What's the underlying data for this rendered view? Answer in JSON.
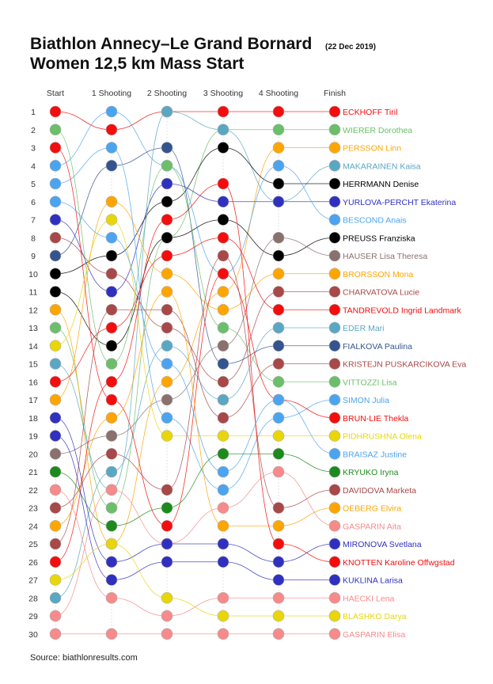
{
  "title": "Biathlon Annecy–Le Grand Bornard",
  "date": "(22 Dec 2019)",
  "subtitle": "Women 12,5 km Mass Start",
  "source": "Source: biathlonresults.com",
  "chart_data": {
    "type": "bump",
    "stages": [
      "Start",
      "1 Shooting",
      "2 Shooting",
      "3 Shooting",
      "4 Shooting",
      "Finish"
    ],
    "ranks": [
      1,
      2,
      3,
      4,
      5,
      6,
      7,
      8,
      9,
      10,
      11,
      12,
      13,
      14,
      15,
      16,
      17,
      18,
      19,
      20,
      21,
      22,
      23,
      24,
      25,
      26,
      27,
      28,
      29,
      30
    ],
    "athletes": [
      {
        "name": "ECKHOFF Tiril",
        "color": "#f40d0d",
        "positions": [
          1,
          2,
          1,
          1,
          1,
          1
        ]
      },
      {
        "name": "WIERER Dorothea",
        "color": "#6bbf6b",
        "positions": [
          13,
          23,
          8,
          2,
          2,
          2
        ]
      },
      {
        "name": "PERSSON Linn",
        "color": "#ffa500",
        "positions": [
          12,
          25,
          16,
          11,
          3,
          3
        ]
      },
      {
        "name": "MAKARAINEN Kaisa",
        "color": "#5aa7c4",
        "positions": [
          15,
          22,
          1,
          2,
          6,
          4
        ]
      },
      {
        "name": "HERRMANN Denise",
        "color": "#000000",
        "positions": [
          10,
          9,
          6,
          3,
          5,
          5
        ]
      },
      {
        "name": "YURLOVA-PERCHT Ekaterina",
        "color": "#3030c0",
        "positions": [
          7,
          11,
          5,
          6,
          6,
          6
        ]
      },
      {
        "name": "BESCOND Anais",
        "color": "#4ba4f0",
        "positions": [
          4,
          1,
          4,
          10,
          4,
          7
        ]
      },
      {
        "name": "PREUSS Franziska",
        "color": "#000000",
        "positions": [
          11,
          14,
          8,
          7,
          9,
          8
        ]
      },
      {
        "name": "HAUSER Lisa Theresa",
        "color": "#8a716d",
        "positions": [
          20,
          19,
          17,
          14,
          8,
          9
        ]
      },
      {
        "name": "BRORSSON Mona",
        "color": "#ffa500",
        "positions": [
          17,
          6,
          10,
          12,
          10,
          10
        ]
      },
      {
        "name": "CHARVATOVA Lucie",
        "color": "#a84848",
        "positions": [
          8,
          10,
          13,
          16,
          11,
          11
        ]
      },
      {
        "name": "TANDREVOLD Ingrid Landmark",
        "color": "#f40d0d",
        "positions": [
          16,
          13,
          9,
          8,
          12,
          12
        ]
      },
      {
        "name": "EDER Mari",
        "color": "#5aa7c4",
        "positions": [
          28,
          21,
          14,
          17,
          13,
          13
        ]
      },
      {
        "name": "FIALKOVA Paulina",
        "color": "#34548f",
        "positions": [
          9,
          4,
          3,
          15,
          14,
          14
        ]
      },
      {
        "name": "KRISTEJN PUSKARCIKOVA Eva",
        "color": "#a84848",
        "positions": [
          25,
          12,
          12,
          18,
          15,
          15
        ]
      },
      {
        "name": "VITTOZZI Lisa",
        "color": "#6bbf6b",
        "positions": [
          2,
          15,
          4,
          13,
          16,
          16
        ]
      },
      {
        "name": "SIMON Julia",
        "color": "#4ba4f0",
        "positions": [
          5,
          3,
          18,
          22,
          18,
          17
        ]
      },
      {
        "name": "BRUN-LIE Thekla",
        "color": "#f40d0d",
        "positions": [
          3,
          17,
          24,
          10,
          17,
          18
        ]
      },
      {
        "name": "PIDHRUSHNA Olena",
        "color": "#e8d60a",
        "positions": [
          14,
          7,
          19,
          19,
          19,
          19
        ]
      },
      {
        "name": "BRAISAZ Justine",
        "color": "#4ba4f0",
        "positions": [
          6,
          8,
          15,
          21,
          17,
          20
        ]
      },
      {
        "name": "KRYUKO Iryna",
        "color": "#1c8a1c",
        "positions": [
          21,
          24,
          23,
          20,
          20,
          21
        ]
      },
      {
        "name": "DAVIDOVA Marketa",
        "color": "#a84848",
        "positions": [
          23,
          20,
          22,
          9,
          23,
          22
        ]
      },
      {
        "name": "OEBERG Elvira",
        "color": "#ffa500",
        "positions": [
          24,
          18,
          11,
          24,
          24,
          23
        ]
      },
      {
        "name": "GASPARIN Aita",
        "color": "#f78a8a",
        "positions": [
          29,
          22,
          25,
          23,
          21,
          24
        ]
      },
      {
        "name": "MIRONOVA Svetlana",
        "color": "#3030c0",
        "positions": [
          18,
          26,
          25,
          25,
          26,
          25
        ]
      },
      {
        "name": "KNOTTEN Karoline Offwgstad",
        "color": "#f40d0d",
        "positions": [
          26,
          16,
          7,
          5,
          25,
          26
        ]
      },
      {
        "name": "KUKLINA Larisa",
        "color": "#3030c0",
        "positions": [
          19,
          27,
          26,
          26,
          27,
          27
        ]
      },
      {
        "name": "HAECKI Lena",
        "color": "#f78a8a",
        "positions": [
          22,
          28,
          29,
          28,
          28,
          28
        ]
      },
      {
        "name": "BLASHKO Darya",
        "color": "#e8d60a",
        "positions": [
          27,
          25,
          28,
          29,
          29,
          29
        ]
      },
      {
        "name": "GASPARIN Elisa",
        "color": "#f78a8a",
        "positions": [
          30,
          30,
          30,
          30,
          30,
          30
        ]
      }
    ]
  }
}
